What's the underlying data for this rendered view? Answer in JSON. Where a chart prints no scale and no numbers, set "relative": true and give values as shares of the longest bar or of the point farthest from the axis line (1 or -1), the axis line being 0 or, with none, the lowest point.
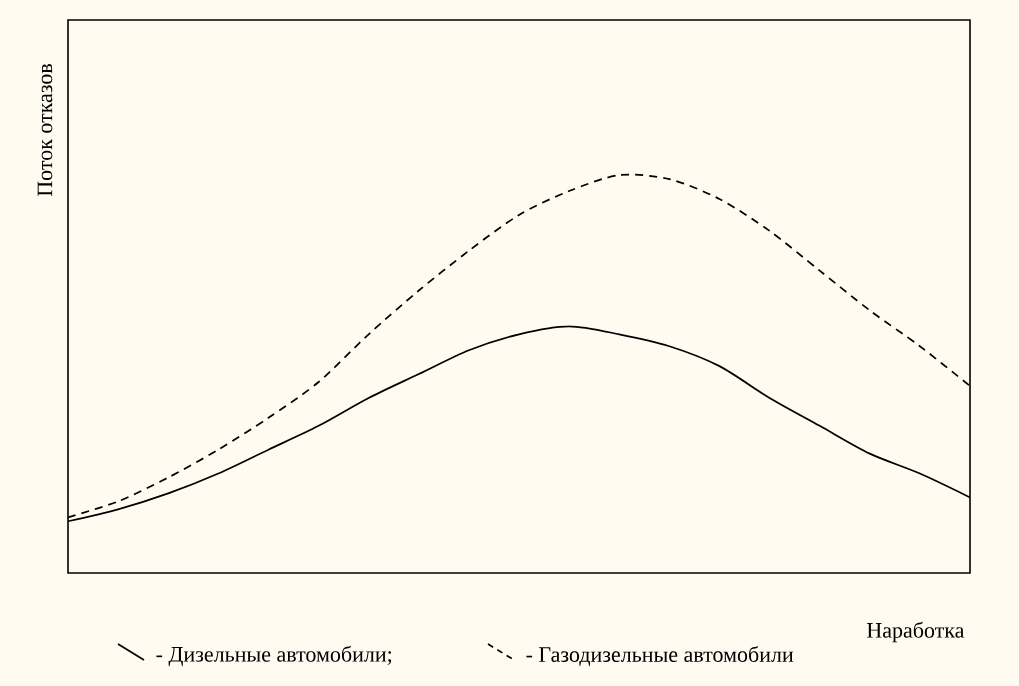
{
  "chart_data": {
    "type": "line",
    "relative": true,
    "xlabel": "Наработка",
    "ylabel": "Поток отказов",
    "categories": [
      null,
      null,
      null,
      null,
      null,
      null,
      null,
      null,
      null,
      null,
      null,
      null,
      null,
      null,
      null,
      null,
      null,
      null,
      null
    ],
    "series": [
      {
        "name": "- Дизельные автомобили;",
        "color": "#000000",
        "line_style": "solid",
        "values": [
          0.13,
          0.16,
          0.2,
          0.25,
          0.31,
          0.37,
          0.44,
          0.5,
          0.56,
          0.6,
          0.62,
          0.6,
          0.57,
          0.52,
          0.44,
          0.37,
          0.3,
          0.25,
          0.19
        ]
      },
      {
        "name": "- Газодизельные автомобили",
        "color": "#000000",
        "line_style": "dashed",
        "values": [
          0.14,
          0.18,
          0.24,
          0.31,
          0.39,
          0.48,
          0.6,
          0.71,
          0.81,
          0.9,
          0.96,
          1.0,
          0.99,
          0.94,
          0.86,
          0.76,
          0.66,
          0.57,
          0.47
        ]
      }
    ],
    "legend": "bottom",
    "marker": "none"
  }
}
